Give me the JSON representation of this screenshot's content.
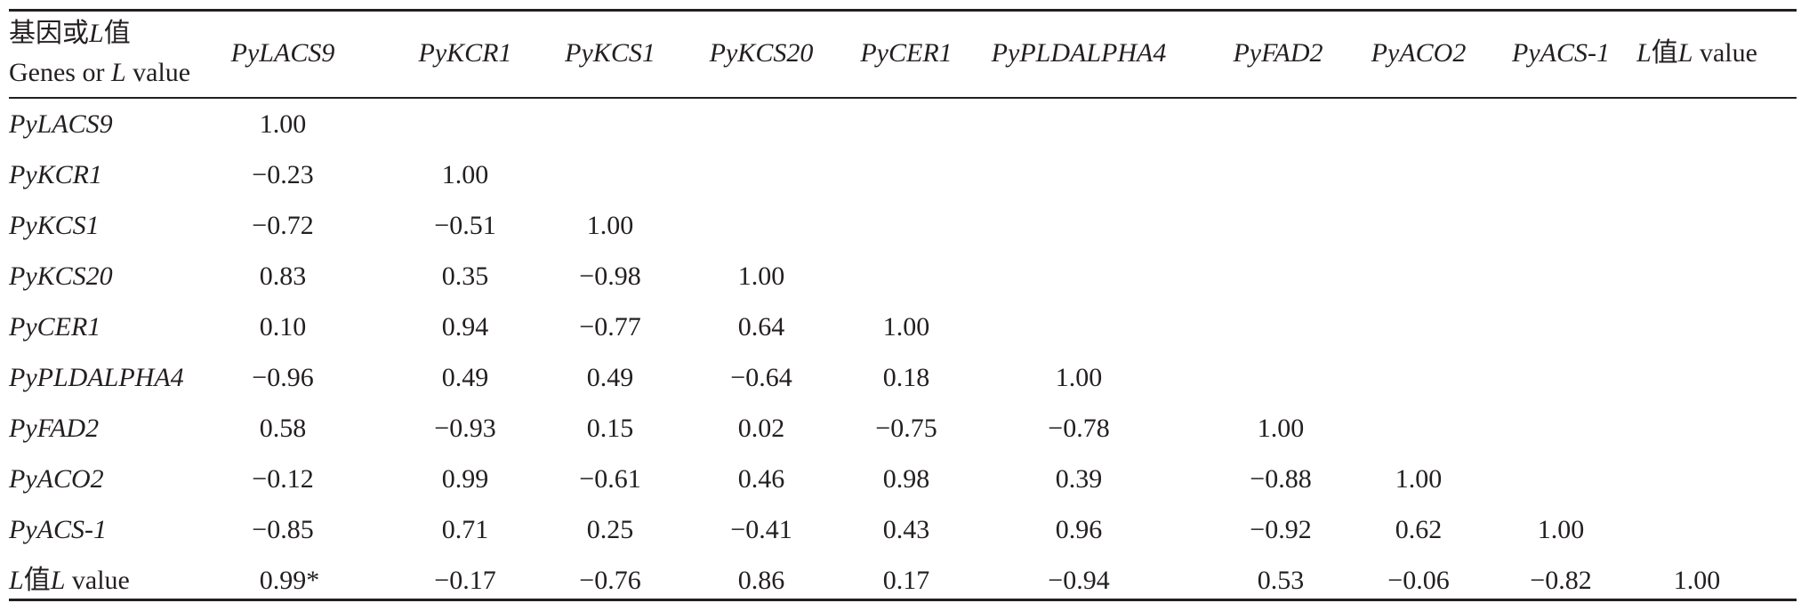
{
  "table": {
    "corner": {
      "zh_prefix": "基因或",
      "zh_L": "L",
      "zh_suffix": "值",
      "en_prefix": "Genes or ",
      "en_L": "L",
      "en_suffix": " value"
    },
    "last_col": {
      "zh_L": "L",
      "zh_suffix": "值",
      "en_L": "L",
      "en_suffix": " value"
    },
    "genes": [
      "PyLACS9",
      "PyKCR1",
      "PyKCS1",
      "PyKCS20",
      "PyCER1",
      "PyPLDALPHA4",
      "PyFAD2",
      "PyACO2",
      "PyACS-1"
    ],
    "rows": [
      {
        "values": [
          "1.00"
        ]
      },
      {
        "values": [
          "−0.23",
          "1.00"
        ]
      },
      {
        "values": [
          "−0.72",
          "−0.51",
          "1.00"
        ]
      },
      {
        "values": [
          "0.83",
          "0.35",
          "−0.98",
          "1.00"
        ]
      },
      {
        "values": [
          "0.10",
          "0.94",
          "−0.77",
          "0.64",
          "1.00"
        ]
      },
      {
        "values": [
          "−0.96",
          "0.49",
          "0.49",
          "−0.64",
          "0.18",
          "1.00"
        ]
      },
      {
        "values": [
          "0.58",
          "−0.93",
          "0.15",
          "0.02",
          "−0.75",
          "−0.78",
          "1.00"
        ]
      },
      {
        "values": [
          "−0.12",
          "0.99",
          "−0.61",
          "0.46",
          "0.98",
          "0.39",
          "−0.88",
          "1.00"
        ]
      },
      {
        "values": [
          "−0.85",
          "0.71",
          "0.25",
          "−0.41",
          "0.43",
          "0.96",
          "−0.92",
          "0.62",
          "1.00"
        ]
      },
      {
        "values": [
          "0.99",
          "−0.17",
          "−0.76",
          "0.86",
          "0.17",
          "−0.94",
          "0.53",
          "−0.06",
          "−0.82",
          "1.00"
        ],
        "marks": [
          "*"
        ]
      }
    ]
  }
}
